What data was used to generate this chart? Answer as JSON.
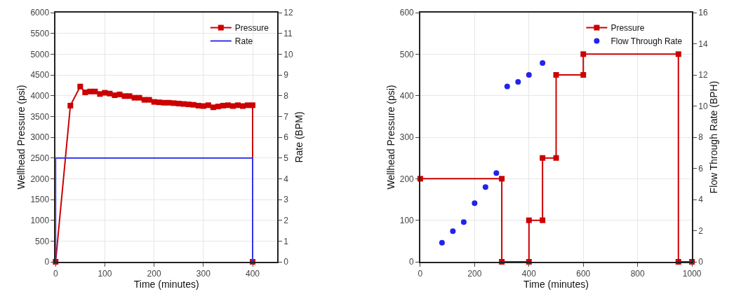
{
  "chart_data": [
    {
      "type": "line",
      "xlabel": "Time (minutes)",
      "ylabel": "Wellhead Pressure (psi)",
      "y2label": "Rate (BPM)",
      "xlim": [
        0,
        450
      ],
      "xticks": [
        0,
        100,
        200,
        300,
        400
      ],
      "ylim": [
        0,
        6000
      ],
      "yticks": [
        0,
        500,
        1000,
        1500,
        2000,
        2500,
        3000,
        3500,
        4000,
        4500,
        5000,
        5500,
        6000
      ],
      "y2lim": [
        0,
        12
      ],
      "y2ticks": [
        0,
        1,
        2,
        3,
        4,
        5,
        6,
        7,
        8,
        9,
        10,
        11,
        12
      ],
      "grid": true,
      "legend": "top right",
      "series": [
        {
          "name": "Pressure",
          "color": "#cc0000",
          "marker": "square",
          "x": [
            0,
            30,
            50,
            60,
            70,
            80,
            90,
            100,
            110,
            120,
            130,
            140,
            150,
            160,
            170,
            180,
            190,
            200,
            210,
            220,
            230,
            240,
            250,
            260,
            270,
            280,
            290,
            300,
            310,
            320,
            330,
            340,
            350,
            360,
            370,
            380,
            390,
            400,
            400
          ],
          "values": [
            0,
            3760,
            4220,
            4080,
            4100,
            4100,
            4040,
            4070,
            4050,
            4010,
            4030,
            3990,
            3990,
            3950,
            3950,
            3900,
            3900,
            3850,
            3840,
            3830,
            3830,
            3820,
            3810,
            3800,
            3790,
            3780,
            3760,
            3750,
            3770,
            3720,
            3740,
            3760,
            3770,
            3750,
            3770,
            3750,
            3770,
            3770,
            0
          ]
        },
        {
          "name": "Rate",
          "color": "#3333ee",
          "marker": "none",
          "axis": "y2",
          "x": [
            0,
            0,
            400,
            400
          ],
          "values": [
            0,
            5,
            5,
            0
          ]
        }
      ]
    },
    {
      "type": "line",
      "xlabel": "Time (minutes)",
      "ylabel": "Wellhead Pressure (psi)",
      "y2label": "Flow Through Rate (BPH)",
      "xlim": [
        0,
        1000
      ],
      "xticks": [
        0,
        200,
        400,
        600,
        800,
        1000
      ],
      "ylim": [
        0,
        600
      ],
      "yticks": [
        0,
        100,
        200,
        300,
        400,
        500,
        600
      ],
      "y2lim": [
        0,
        16
      ],
      "y2ticks": [
        0,
        2,
        4,
        6,
        8,
        10,
        12,
        14,
        16
      ],
      "grid": true,
      "legend": "top right",
      "series": [
        {
          "name": "Pressure",
          "color": "#cc0000",
          "marker": "square",
          "x": [
            0,
            300,
            300,
            400,
            400,
            450,
            450,
            500,
            500,
            600,
            600,
            950,
            950,
            1000
          ],
          "values": [
            200,
            200,
            0,
            0,
            100,
            100,
            250,
            250,
            450,
            450,
            500,
            500,
            0,
            0
          ]
        },
        {
          "name": "Flow Through Rate",
          "type": "scatter",
          "color": "#2222ee",
          "marker": "circle",
          "axis": "y2",
          "x": [
            80,
            120,
            160,
            200,
            240,
            280,
            320,
            360,
            400,
            450
          ],
          "values": [
            1.22,
            1.97,
            2.55,
            3.76,
            4.8,
            5.7,
            11.26,
            11.55,
            12.0,
            12.76
          ]
        }
      ]
    }
  ]
}
